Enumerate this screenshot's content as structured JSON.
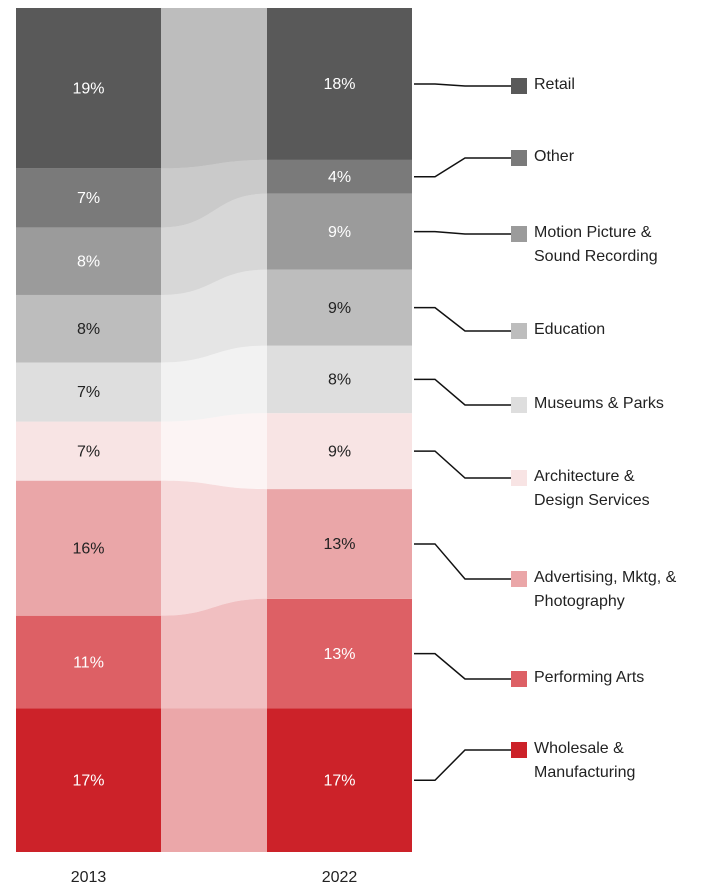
{
  "chart_data": {
    "type": "stacked_bar_flow",
    "categories": [
      "2013",
      "2022"
    ],
    "series": [
      {
        "name": "Wholesale & Manufacturing",
        "color": "#cc2229",
        "values": [
          17,
          17
        ],
        "value_labels": [
          "17%",
          "17%"
        ]
      },
      {
        "name": "Performing Arts",
        "color": "#dd6065",
        "values": [
          11,
          13
        ],
        "value_labels": [
          "11%",
          "13%"
        ]
      },
      {
        "name": "Advertising, Mktg, & Photography",
        "color": "#eaa6a8",
        "values": [
          16,
          13
        ],
        "value_labels": [
          "16%",
          "13%"
        ]
      },
      {
        "name": "Architecture & Design Services",
        "color": "#f8e4e4",
        "values": [
          7,
          9
        ],
        "value_labels": [
          "7%",
          "9%"
        ]
      },
      {
        "name": "Museums & Parks",
        "color": "#dedede",
        "values": [
          7,
          8
        ],
        "value_labels": [
          "7%",
          "8%"
        ]
      },
      {
        "name": "Education",
        "color": "#bdbdbd",
        "values": [
          8,
          9
        ],
        "value_labels": [
          "8%",
          "9%"
        ]
      },
      {
        "name": "Motion Picture & Sound Recording",
        "color": "#9b9b9b",
        "values": [
          8,
          9
        ],
        "value_labels": [
          "8%",
          "9%"
        ]
      },
      {
        "name": "Other",
        "color": "#7a7a7a",
        "values": [
          7,
          4
        ],
        "value_labels": [
          "7%",
          "4%"
        ]
      },
      {
        "name": "Retail",
        "color": "#595959",
        "values": [
          19,
          18
        ],
        "value_labels": [
          "19%",
          "18%"
        ]
      }
    ]
  }
}
